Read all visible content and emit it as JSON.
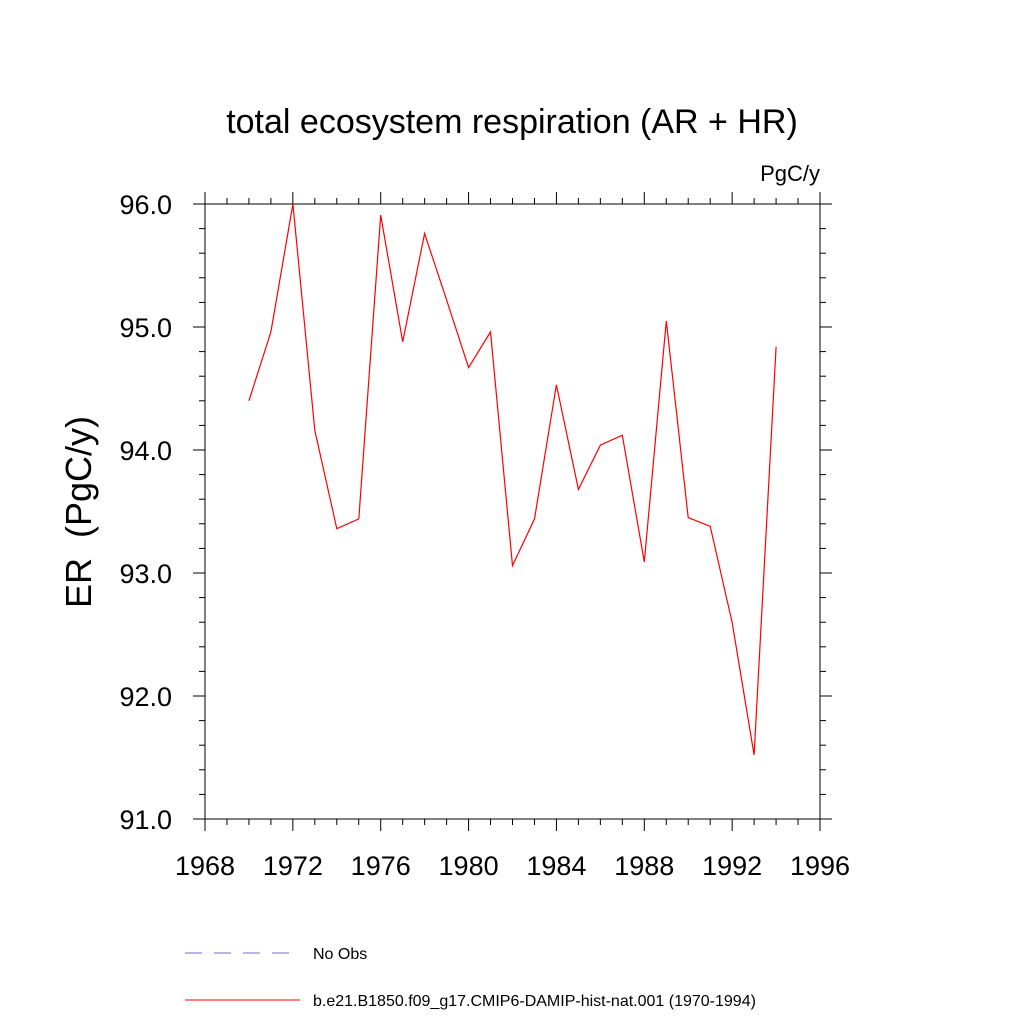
{
  "chart_data": {
    "type": "line",
    "title": "total ecosystem respiration (AR + HR)",
    "units": "PgC/y",
    "ylabel": "ER  (PgC/y)",
    "xlabel": "",
    "xlim": [
      1968,
      1996
    ],
    "ylim": [
      91.0,
      96.0
    ],
    "x_ticks": [
      "1968",
      "1972",
      "1976",
      "1980",
      "1984",
      "1988",
      "1992",
      "1996"
    ],
    "y_ticks": [
      "91.0",
      "92.0",
      "93.0",
      "94.0",
      "95.0",
      "96.0"
    ],
    "grid": false,
    "legend_position": "bottom",
    "series": [
      {
        "name": "b.e21.B1850.f09_g17.CMIP6-DAMIP-hist-nat.001 (1970-1994)",
        "color": "#ff0000",
        "style": "solid",
        "x": [
          1970,
          1971,
          1972,
          1973,
          1974,
          1975,
          1976,
          1977,
          1978,
          1979,
          1980,
          1981,
          1982,
          1983,
          1984,
          1985,
          1986,
          1987,
          1988,
          1989,
          1990,
          1991,
          1992,
          1993,
          1994
        ],
        "y": [
          94.4,
          94.96,
          96.0,
          94.16,
          93.36,
          93.44,
          95.91,
          94.88,
          95.76,
          95.22,
          94.67,
          94.96,
          93.06,
          93.44,
          94.53,
          93.68,
          94.04,
          94.12,
          93.09,
          95.05,
          93.45,
          93.38,
          92.6,
          91.52,
          94.84
        ]
      }
    ],
    "legend": [
      {
        "label": "No Obs",
        "color": "#7b68c8",
        "style": "dashed"
      },
      {
        "label": "b.e21.B1850.f09_g17.CMIP6-DAMIP-hist-nat.001 (1970-1994)",
        "color": "#ff0000",
        "style": "solid"
      }
    ]
  }
}
